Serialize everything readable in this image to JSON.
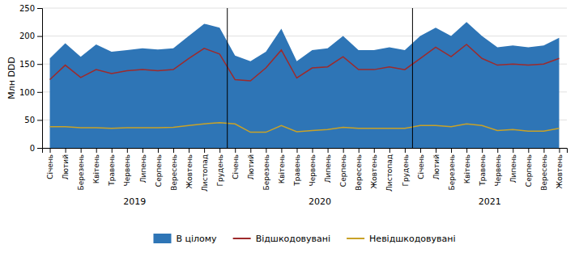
{
  "chart_data": {
    "type": "line",
    "categories": [
      "Січень",
      "Лютий",
      "Березень",
      "Квітень",
      "Травень",
      "Червень",
      "Липень",
      "Серпень",
      "Вересень",
      "Жовтень",
      "Листопад",
      "Грудень",
      "Січень",
      "Лютий",
      "Березень",
      "Квітень",
      "Травень",
      "Червень",
      "Липень",
      "Серпень",
      "Вересень",
      "Жовтень",
      "Листопад",
      "Грудень",
      "Січень",
      "Лютий",
      "Березень",
      "Квітень",
      "Травень",
      "Червень",
      "Липень",
      "Серпень",
      "Вересень",
      "Жовтень"
    ],
    "series": [
      {
        "name": "В цілому",
        "type": "area",
        "color": "#2E75B6",
        "values": [
          160,
          187,
          163,
          185,
          172,
          175,
          178,
          176,
          178,
          200,
          222,
          215,
          165,
          155,
          172,
          213,
          155,
          175,
          178,
          200,
          175,
          175,
          180,
          175,
          200,
          215,
          200,
          225,
          200,
          180,
          183,
          180,
          183,
          197
        ]
      },
      {
        "name": "Відшкодовувані",
        "type": "line",
        "color": "#9E2A2B",
        "values": [
          122,
          148,
          126,
          140,
          133,
          138,
          140,
          138,
          140,
          160,
          178,
          168,
          122,
          120,
          143,
          175,
          125,
          143,
          145,
          163,
          140,
          140,
          145,
          140,
          160,
          180,
          163,
          185,
          160,
          148,
          150,
          148,
          150,
          160
        ]
      },
      {
        "name": "Невідшкодовувані",
        "type": "line",
        "color": "#C9A227",
        "values": [
          38,
          38,
          36,
          36,
          35,
          36,
          36,
          36,
          37,
          40,
          43,
          45,
          43,
          28,
          28,
          40,
          29,
          31,
          33,
          37,
          35,
          35,
          35,
          35,
          40,
          40,
          38,
          43,
          40,
          31,
          33,
          30,
          30,
          35
        ]
      }
    ],
    "annotations": [
      "2019",
      "2020",
      "2021"
    ],
    "ylabel": "Млн DDD",
    "ylim": [
      0,
      250
    ],
    "yticks": [
      0,
      50,
      100,
      150,
      200,
      250
    ],
    "grid": true,
    "legend": "bottom"
  }
}
